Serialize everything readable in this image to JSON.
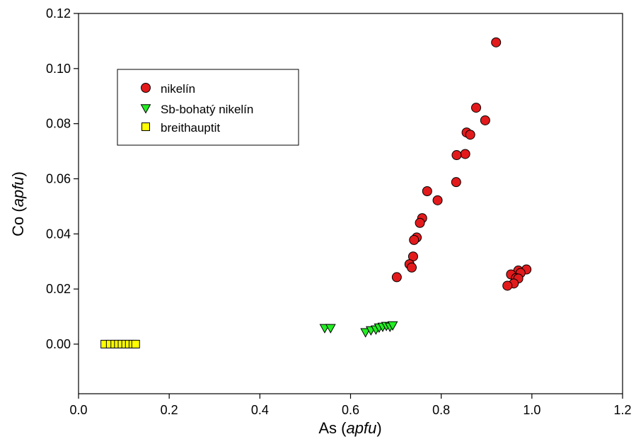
{
  "chart_data": {
    "type": "scatter",
    "title": "",
    "xlabel": {
      "main": "As",
      "unit": "apfu"
    },
    "ylabel": {
      "main": "Co",
      "unit": "apfu"
    },
    "xlim": [
      0.0,
      1.2
    ],
    "ylim": [
      -0.018,
      0.12
    ],
    "xticks": [
      "0.0",
      "0.2",
      "0.4",
      "0.6",
      "0.8",
      "1.0",
      "1.2"
    ],
    "yticks": [
      "0.00",
      "0.02",
      "0.04",
      "0.06",
      "0.08",
      "0.10",
      "0.12"
    ],
    "grid": false,
    "legend_position": "upper-left",
    "series": [
      {
        "name": "nikelín",
        "marker": "circle",
        "color": "#e31a1c",
        "points": [
          [
            0.921,
            0.1095
          ],
          [
            0.877,
            0.0858
          ],
          [
            0.897,
            0.0812
          ],
          [
            0.856,
            0.0768
          ],
          [
            0.864,
            0.076
          ],
          [
            0.853,
            0.069
          ],
          [
            0.834,
            0.0686
          ],
          [
            0.833,
            0.0588
          ],
          [
            0.769,
            0.0555
          ],
          [
            0.792,
            0.0522
          ],
          [
            0.758,
            0.0457
          ],
          [
            0.753,
            0.044
          ],
          [
            0.746,
            0.0387
          ],
          [
            0.74,
            0.0378
          ],
          [
            0.738,
            0.0318
          ],
          [
            0.73,
            0.029
          ],
          [
            0.735,
            0.0278
          ],
          [
            0.702,
            0.0243
          ],
          [
            0.97,
            0.0267
          ],
          [
            0.988,
            0.0271
          ],
          [
            0.975,
            0.0258
          ],
          [
            0.954,
            0.0253
          ],
          [
            0.965,
            0.024
          ],
          [
            0.97,
            0.0238
          ],
          [
            0.96,
            0.022
          ],
          [
            0.946,
            0.0212
          ]
        ]
      },
      {
        "name": "Sb-bohatý nikelín",
        "marker": "triangle-down",
        "color": "#22ee22",
        "points": [
          [
            0.543,
            0.0058
          ],
          [
            0.556,
            0.0058
          ],
          [
            0.633,
            0.0043
          ],
          [
            0.645,
            0.005
          ],
          [
            0.656,
            0.0053
          ],
          [
            0.663,
            0.006
          ],
          [
            0.671,
            0.0063
          ],
          [
            0.679,
            0.0066
          ],
          [
            0.687,
            0.0063
          ],
          [
            0.693,
            0.0068
          ]
        ]
      },
      {
        "name": "breithauptit",
        "marker": "square",
        "color": "#ffff00",
        "points": [
          [
            0.058,
            0.0
          ],
          [
            0.07,
            0.0
          ],
          [
            0.08,
            0.0
          ],
          [
            0.088,
            0.0
          ],
          [
            0.096,
            0.0
          ],
          [
            0.104,
            0.0
          ],
          [
            0.112,
            0.0
          ],
          [
            0.12,
            0.0
          ],
          [
            0.126,
            0.0
          ]
        ]
      }
    ]
  }
}
